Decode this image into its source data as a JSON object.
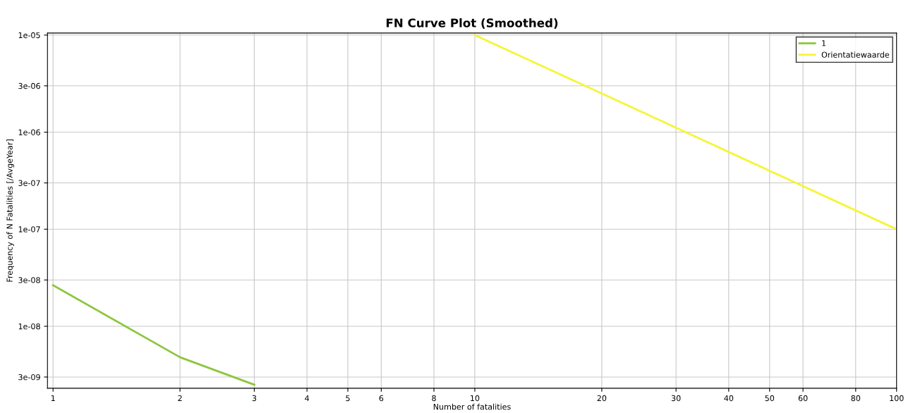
{
  "chart_data": {
    "type": "line",
    "title": "FN Curve Plot (Smoothed)",
    "xlabel": "Number of fatalities",
    "ylabel": "Frequency of N Fatalities [/AvgeYear]",
    "log": "xy",
    "grid": true,
    "legend": "top right",
    "xlim": [
      0.97,
      100
    ],
    "ylim": [
      2.3e-09,
      1.05e-05
    ],
    "xticks": [
      1,
      2,
      3,
      4,
      5,
      6,
      8,
      10,
      20,
      30,
      40,
      50,
      60,
      80,
      100
    ],
    "yticks": [
      {
        "value": 1e-05,
        "label": "1e-05"
      },
      {
        "value": 3e-06,
        "label": "3e-06"
      },
      {
        "value": 1e-06,
        "label": "1e-06"
      },
      {
        "value": 3e-07,
        "label": "3e-07"
      },
      {
        "value": 1e-07,
        "label": "1e-07"
      },
      {
        "value": 3e-08,
        "label": "3e-08"
      },
      {
        "value": 1e-08,
        "label": "1e-08"
      },
      {
        "value": 3e-09,
        "label": "3e-09"
      }
    ],
    "series": [
      {
        "name": "1",
        "color": "#8cc63e",
        "x": [
          1,
          2,
          3
        ],
        "values": [
          2.65e-08,
          4.8e-09,
          2.5e-09
        ]
      },
      {
        "name": "Orientatiewaarde",
        "color": "#f5f536",
        "x": [
          10,
          100
        ],
        "values": [
          1e-05,
          1e-07
        ]
      }
    ]
  }
}
